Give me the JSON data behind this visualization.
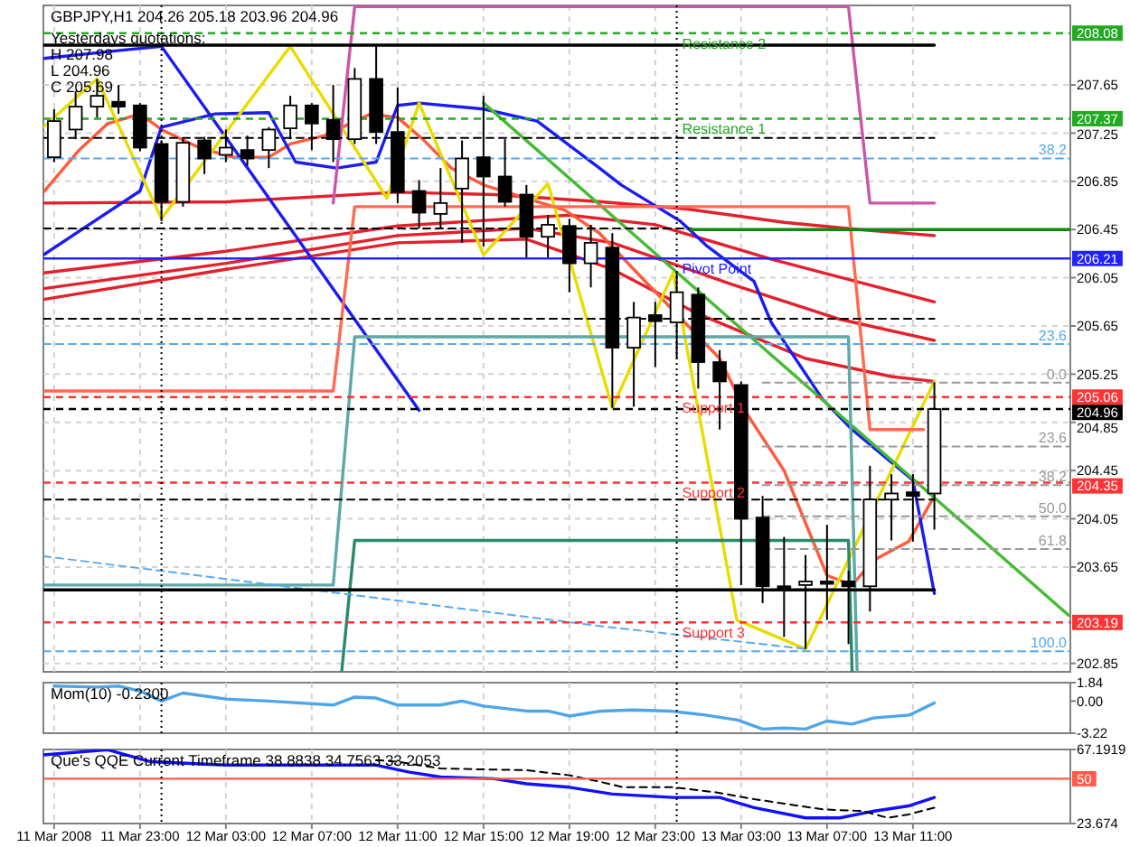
{
  "chart_data": [
    {
      "type": "candlestick",
      "title": "GBPJPY,H1 204.26 205.18 203.96 204.96",
      "color": "#000000",
      "x": [
        "2008-03-11T19:00",
        "2008-03-11T20:00",
        "2008-03-11T21:00",
        "2008-03-11T22:00",
        "2008-03-11T23:00",
        "2008-03-12T00:00",
        "2008-03-12T01:00",
        "2008-03-12T02:00",
        "2008-03-12T03:00",
        "2008-03-12T04:00",
        "2008-03-12T05:00",
        "2008-03-12T06:00",
        "2008-03-12T07:00",
        "2008-03-12T08:00",
        "2008-03-12T09:00",
        "2008-03-12T10:00",
        "2008-03-12T11:00",
        "2008-03-12T12:00",
        "2008-03-12T13:00",
        "2008-03-12T14:00",
        "2008-03-12T15:00",
        "2008-03-12T16:00",
        "2008-03-12T17:00",
        "2008-03-12T18:00",
        "2008-03-12T19:00",
        "2008-03-12T20:00",
        "2008-03-12T21:00",
        "2008-03-12T22:00",
        "2008-03-12T23:00",
        "2008-03-13T00:00",
        "2008-03-13T01:00",
        "2008-03-13T02:00",
        "2008-03-13T03:00",
        "2008-03-13T04:00",
        "2008-03-13T05:00",
        "2008-03-13T06:00",
        "2008-03-13T07:00",
        "2008-03-13T08:00",
        "2008-03-13T09:00",
        "2008-03-13T10:00",
        "2008-03-13T11:00",
        "2008-03-13T12:00"
      ],
      "ohlc": [
        [
          207.05,
          207.45,
          207.01,
          207.35
        ],
        [
          207.28,
          207.6,
          207.2,
          207.47
        ],
        [
          207.47,
          207.7,
          207.38,
          207.56
        ],
        [
          207.51,
          207.65,
          207.41,
          207.47
        ],
        [
          207.48,
          207.5,
          207.1,
          207.13
        ],
        [
          207.16,
          207.19,
          206.52,
          206.68
        ],
        [
          206.68,
          207.2,
          206.64,
          207.17
        ],
        [
          207.19,
          207.22,
          206.91,
          207.04
        ],
        [
          207.07,
          207.28,
          207.01,
          207.13
        ],
        [
          207.11,
          207.23,
          206.98,
          207.04
        ],
        [
          207.11,
          207.3,
          206.96,
          207.28
        ],
        [
          207.29,
          207.56,
          207.2,
          207.48
        ],
        [
          207.48,
          207.5,
          207.11,
          207.33
        ],
        [
          207.36,
          207.65,
          207.01,
          207.2
        ],
        [
          207.2,
          207.79,
          207.16,
          207.7
        ],
        [
          207.7,
          207.97,
          207.16,
          207.26
        ],
        [
          207.26,
          207.63,
          206.67,
          206.76
        ],
        [
          206.77,
          206.86,
          206.46,
          206.59
        ],
        [
          206.58,
          206.96,
          206.46,
          206.67
        ],
        [
          206.79,
          207.19,
          206.34,
          207.04
        ],
        [
          207.05,
          207.56,
          206.31,
          206.89
        ],
        [
          206.89,
          207.2,
          206.64,
          206.68
        ],
        [
          206.74,
          206.82,
          206.22,
          206.39
        ],
        [
          206.39,
          206.57,
          206.22,
          206.49
        ],
        [
          206.48,
          206.54,
          205.93,
          206.17
        ],
        [
          206.17,
          206.49,
          205.97,
          206.34
        ],
        [
          206.3,
          206.42,
          204.97,
          205.47
        ],
        [
          205.47,
          205.85,
          204.98,
          205.72
        ],
        [
          205.74,
          205.85,
          205.31,
          205.69
        ],
        [
          205.68,
          206.09,
          205.38,
          205.93
        ],
        [
          205.91,
          205.97,
          205.13,
          205.35
        ],
        [
          205.35,
          205.45,
          204.79,
          205.19
        ],
        [
          205.16,
          205.19,
          203.5,
          204.05
        ],
        [
          204.06,
          204.24,
          203.35,
          203.49
        ],
        [
          203.49,
          203.9,
          203.07,
          203.48
        ],
        [
          203.5,
          203.75,
          202.97,
          203.53
        ],
        [
          203.53,
          204.0,
          203.21,
          203.51
        ],
        [
          203.53,
          203.62,
          203.01,
          203.49
        ],
        [
          203.49,
          204.49,
          203.28,
          204.21
        ],
        [
          204.21,
          204.42,
          203.87,
          204.26
        ],
        [
          204.27,
          204.42,
          203.86,
          204.24
        ],
        [
          204.26,
          205.18,
          203.96,
          204.96
        ]
      ],
      "series": [
        {
          "type": "line",
          "color": "#e4202c",
          "x": [
            "2008-03-11T18:30",
            "2008-03-12T03:00",
            "2008-03-12T11:00",
            "2008-03-12T15:30",
            "2008-03-12T20:30",
            "2008-03-13T00:30",
            "2008-03-13T05:00",
            "2008-03-13T08:30",
            "2008-03-13T12:00"
          ],
          "values": [
            206.67,
            206.68,
            206.76,
            206.74,
            206.68,
            206.62,
            206.51,
            206.45,
            206.4
          ]
        },
        {
          "type": "line",
          "color": "#e4202c",
          "x": [
            "2008-03-11T18:30",
            "2008-03-12T03:00",
            "2008-03-12T11:00",
            "2008-03-12T19:00",
            "2008-03-12T23:00",
            "2008-03-13T04:30",
            "2008-03-13T12:00"
          ],
          "values": [
            206.09,
            206.27,
            206.48,
            206.57,
            206.49,
            206.2,
            205.85
          ]
        },
        {
          "type": "line",
          "color": "#e4202c",
          "x": [
            "2008-03-11T18:30",
            "2008-03-12T03:00",
            "2008-03-12T11:00",
            "2008-03-12T17:00",
            "2008-03-12T21:00",
            "2008-03-13T02:30",
            "2008-03-13T07:30",
            "2008-03-13T12:00"
          ],
          "values": [
            205.96,
            206.17,
            206.4,
            206.46,
            206.34,
            206.0,
            205.71,
            205.53
          ]
        },
        {
          "type": "line",
          "color": "#e4202c",
          "x": [
            "2008-03-11T18:30",
            "2008-03-12T03:00",
            "2008-03-12T11:00",
            "2008-03-12T17:00",
            "2008-03-12T21:00",
            "2008-03-13T01:00",
            "2008-03-13T06:00",
            "2008-03-13T10:00",
            "2008-03-13T12:00"
          ],
          "values": [
            205.87,
            206.12,
            206.34,
            206.37,
            206.12,
            205.75,
            205.38,
            205.23,
            205.19
          ]
        },
        {
          "type": "line",
          "color": "#ff5a3c",
          "x": [
            "2008-03-11T18:30",
            "2008-03-11T20:10",
            "2008-03-11T21:30",
            "2008-03-11T23:00",
            "2008-03-12T00:00",
            "2008-03-12T01:45",
            "2008-03-12T03:20",
            "2008-03-12T05:00",
            "2008-03-12T06:00",
            "2008-03-12T07:36",
            "2008-03-12T09:45",
            "2008-03-12T11:00",
            "2008-03-12T12:10",
            "2008-03-12T13:30",
            "2008-03-12T15:00",
            "2008-03-12T18:48",
            "2008-03-12T20:24",
            "2008-03-12T22:48",
            "2008-03-13T02:00",
            "2008-03-13T03:12",
            "2008-03-13T05:00",
            "2008-03-13T07:00",
            "2008-03-13T08:10",
            "2008-03-13T09:12",
            "2008-03-13T10:48",
            "2008-03-13T12:00"
          ],
          "values": [
            206.76,
            207.11,
            207.33,
            207.41,
            207.28,
            207.13,
            207.05,
            207.05,
            207.16,
            207.23,
            207.41,
            207.38,
            207.2,
            206.96,
            206.82,
            206.61,
            206.42,
            205.97,
            205.38,
            204.94,
            204.45,
            203.58,
            203.5,
            203.71,
            203.86,
            204.24
          ]
        },
        {
          "type": "line",
          "color": "#1c1cf0",
          "x": [
            "2008-03-11T18:30",
            "2008-03-11T23:00",
            "2008-03-12T00:00",
            "2008-03-12T02:30",
            "2008-03-12T05:00",
            "2008-03-12T06:15",
            "2008-03-12T08:10",
            "2008-03-12T10:00",
            "2008-03-12T11:00",
            "2008-03-12T12:00",
            "2008-03-12T15:00",
            "2008-03-12T17:30",
            "2008-03-12T20:24",
            "2008-03-12T21:25",
            "2008-03-13T00:10",
            "2008-03-13T01:26",
            "2008-03-13T03:36",
            "2008-03-13T04:24",
            "2008-03-13T06:48",
            "2008-03-13T08:10",
            "2008-03-13T11:00",
            "2008-03-13T12:00"
          ],
          "values": [
            206.24,
            206.77,
            207.3,
            207.41,
            207.42,
            207.01,
            206.96,
            207.01,
            207.48,
            207.5,
            207.45,
            207.35,
            206.96,
            206.82,
            206.52,
            206.31,
            206.02,
            205.68,
            205.04,
            204.79,
            204.37,
            203.43
          ]
        },
        {
          "type": "line",
          "color": "#1c1cf0",
          "x": [
            "2008-03-11T18:30",
            "2008-03-11T22:15",
            "2008-03-12T00:00",
            "2008-03-12T12:00"
          ],
          "values": [
            207.87,
            207.94,
            207.97,
            204.95
          ]
        },
        {
          "type": "line",
          "color": "#e8dc00",
          "x": [
            "2008-03-11T18:30",
            "2008-03-11T21:00",
            "2008-03-12T00:00",
            "2008-03-12T06:00",
            "2008-03-12T10:30",
            "2008-03-12T12:00",
            "2008-03-12T15:00",
            "2008-03-12T18:00",
            "2008-03-12T21:00",
            "2008-03-12T23:50",
            "2008-03-13T02:48",
            "2008-03-13T06:00",
            "2008-03-13T12:00"
          ],
          "values": [
            207.3,
            207.7,
            206.54,
            207.97,
            206.71,
            207.5,
            206.24,
            206.83,
            204.97,
            206.09,
            203.21,
            202.97,
            205.19
          ]
        },
        {
          "type": "line",
          "color": "#44bb33",
          "x": [
            "2008-03-12T15:00",
            "2008-03-13T18:15"
          ],
          "values": [
            207.5,
            203.25
          ]
        },
        {
          "type": "line",
          "color": "#cc55aa",
          "x": [
            "2008-03-12T08:00",
            "2008-03-12T09:00",
            "2008-03-13T08:00",
            "2008-03-13T09:00",
            "2008-03-13T12:00"
          ],
          "values": [
            206.67,
            208.3,
            208.3,
            206.67,
            206.67
          ]
        },
        {
          "type": "line",
          "color": "#ff6a50",
          "x": [
            "2008-03-11T18:30",
            "2008-03-12T08:00",
            "2008-03-12T09:00",
            "2008-03-13T08:00",
            "2008-03-13T09:00",
            "2008-03-13T11:30"
          ],
          "values": [
            205.11,
            205.11,
            206.64,
            206.64,
            204.79,
            204.79
          ]
        },
        {
          "type": "line",
          "color": "#5fa8a8",
          "x": [
            "2008-03-11T18:30",
            "2008-03-12T08:00",
            "2008-03-12T09:00",
            "2008-03-13T08:00",
            "2008-03-13T08:24"
          ],
          "values": [
            203.5,
            203.5,
            205.56,
            205.56,
            202.79
          ]
        },
        {
          "type": "line",
          "color": "#2a8a6a",
          "x": [
            "2008-03-12T08:24",
            "2008-03-12T09:00",
            "2008-03-13T08:00",
            "2008-03-13T08:10"
          ],
          "values": [
            202.79,
            203.87,
            203.87,
            202.79
          ]
        },
        {
          "type": "line",
          "color": "#55aaee",
          "line_style": "dashed",
          "x": [
            "2008-03-11T18:30",
            "2008-03-12T20:24",
            "2008-03-13T06:00"
          ],
          "values": [
            203.74,
            203.16,
            202.97
          ]
        },
        {
          "type": "line",
          "color": "#000000",
          "x": [
            "2008-03-11T18:30",
            "2008-03-13T12:00"
          ],
          "values": [
            207.98,
            207.98
          ]
        },
        {
          "type": "line",
          "color": "#000000",
          "x": [
            "2008-03-11T18:30",
            "2008-03-13T12:00"
          ],
          "values": [
            203.46,
            203.46
          ]
        },
        {
          "type": "line",
          "color": "#000000",
          "line_style": "dashed",
          "x": [
            "2008-03-11T18:30",
            "2008-03-13T12:00"
          ],
          "values": [
            207.21,
            207.21
          ]
        },
        {
          "type": "line",
          "color": "#000000",
          "line_style": "dashed",
          "x": [
            "2008-03-11T18:30",
            "2008-03-13T00:40"
          ],
          "values": [
            206.46,
            206.46
          ]
        },
        {
          "type": "line",
          "color": "#000000",
          "line_style": "dashed",
          "x": [
            "2008-03-11T18:30",
            "2008-03-13T12:00"
          ],
          "values": [
            205.71,
            205.71
          ]
        },
        {
          "type": "line",
          "color": "#000000",
          "line_style": "dashed",
          "x": [
            "2008-03-11T18:30",
            "2008-03-13T12:00"
          ],
          "values": [
            204.21,
            204.21
          ]
        },
        {
          "type": "line",
          "color": "#118811",
          "x": [
            "2008-03-13T00:40",
            "2008-03-13T18:20"
          ],
          "values": [
            206.45,
            206.45
          ]
        },
        {
          "type": "line",
          "color": "#55aaee",
          "line_style": "dashed",
          "x": [
            "2008-03-11T18:30",
            "2008-03-13T18:20"
          ],
          "values": [
            207.04,
            207.04
          ]
        },
        {
          "type": "line",
          "color": "#55aaee",
          "line_style": "dashed",
          "x": [
            "2008-03-11T18:30",
            "2008-03-13T18:20"
          ],
          "values": [
            205.5,
            205.5
          ]
        },
        {
          "type": "line",
          "color": "#55aaee",
          "line_style": "dashed",
          "x": [
            "2008-03-11T18:30",
            "2008-03-13T18:20"
          ],
          "values": [
            202.95,
            202.95
          ]
        },
        {
          "type": "line",
          "color": "#999999",
          "line_style": "dashed",
          "x": [
            "2008-03-13T04:00",
            "2008-03-13T18:20"
          ],
          "values": [
            205.18,
            205.18
          ]
        },
        {
          "type": "line",
          "color": "#999999",
          "line_style": "dashed",
          "x": [
            "2008-03-13T04:00",
            "2008-03-13T18:20"
          ],
          "values": [
            204.65,
            204.65
          ]
        },
        {
          "type": "line",
          "color": "#999999",
          "line_style": "dashed",
          "x": [
            "2008-03-13T04:00",
            "2008-03-13T18:20"
          ],
          "values": [
            204.33,
            204.33
          ]
        },
        {
          "type": "line",
          "color": "#999999",
          "line_style": "dashed",
          "x": [
            "2008-03-13T04:00",
            "2008-03-13T18:20"
          ],
          "values": [
            204.07,
            204.07
          ]
        },
        {
          "type": "line",
          "color": "#999999",
          "line_style": "dashed",
          "x": [
            "2008-03-13T04:00",
            "2008-03-13T18:20"
          ],
          "values": [
            203.8,
            203.8
          ]
        }
      ],
      "ref_lines": [
        {
          "axis": "y",
          "value": 208.08,
          "label": "208.08",
          "color": "#22aa22",
          "line_style": "dashed"
        },
        {
          "axis": "y",
          "value": 207.37,
          "label": "207.37",
          "color": "#22aa22",
          "line_style": "dashed"
        },
        {
          "axis": "y",
          "value": 206.21,
          "label": "206.21",
          "color": "#2222ff",
          "line_style": "solid"
        },
        {
          "axis": "y",
          "value": 205.06,
          "label": "205.06",
          "color": "#ff3333",
          "line_style": "dashed"
        },
        {
          "axis": "y",
          "value": 204.96,
          "label": "204.96",
          "color": "#000000",
          "line_style": "dashed"
        },
        {
          "axis": "y",
          "value": 204.35,
          "label": "204.35",
          "color": "#ff3333",
          "line_style": "dashed"
        },
        {
          "axis": "y",
          "value": 203.19,
          "label": "203.19",
          "color": "#ff3333",
          "line_style": "dashed"
        },
        {
          "axis": "x",
          "value": "2008-03-12T00:00",
          "color": "#000000",
          "line_style": "dotted"
        },
        {
          "axis": "x",
          "value": "2008-03-13T00:00",
          "color": "#000000",
          "line_style": "dotted"
        }
      ],
      "annotations": [
        "Yesterdays quotations:",
        "H 207.98",
        "L 204.96",
        "C 205.69",
        {
          "text": "Resistance 2",
          "x": "2008-03-13T00:00",
          "y": 208.08
        },
        {
          "text": "Resistance 1",
          "x": "2008-03-13T00:00",
          "y": 207.37
        },
        {
          "text": "Pivot Point",
          "x": "2008-03-13T00:00",
          "y": 206.21
        },
        {
          "text": "Support 1",
          "x": "2008-03-13T00:00",
          "y": 205.06
        },
        {
          "text": "Support 2",
          "x": "2008-03-13T00:00",
          "y": 204.35
        },
        {
          "text": "Support 3",
          "x": "2008-03-13T00:00",
          "y": 203.19
        },
        {
          "text": "38.2",
          "x": "2008-03-13T18:20",
          "y": 207.04
        },
        {
          "text": "23.6",
          "x": "2008-03-13T18:20",
          "y": 205.5
        },
        {
          "text": "0.0",
          "x": "2008-03-13T18:20",
          "y": 205.18
        },
        {
          "text": "23.6",
          "x": "2008-03-13T18:20",
          "y": 204.65
        },
        {
          "text": "38.2",
          "x": "2008-03-13T18:20",
          "y": 204.33
        },
        {
          "text": "50.0",
          "x": "2008-03-13T18:20",
          "y": 204.07
        },
        {
          "text": "61.8",
          "x": "2008-03-13T18:20",
          "y": 203.8
        },
        {
          "text": "100.0",
          "x": "2008-03-13T18:20",
          "y": 202.95
        }
      ],
      "xlim": [
        "2008-03-11T18:30",
        "2008-03-13T18:20"
      ],
      "ylim": [
        202.78,
        208.31
      ],
      "xticks": [
        {
          "value": "2008-03-11T19:00",
          "label": null
        },
        {
          "value": "2008-03-11T23:00",
          "label": null
        },
        {
          "value": "2008-03-12T03:00",
          "label": null
        },
        {
          "value": "2008-03-12T07:00",
          "label": null
        },
        {
          "value": "2008-03-12T11:00",
          "label": null
        },
        {
          "value": "2008-03-12T15:00",
          "label": null
        },
        {
          "value": "2008-03-12T19:00",
          "label": null
        },
        {
          "value": "2008-03-12T23:00",
          "label": null
        },
        {
          "value": "2008-03-13T03:00",
          "label": null
        },
        {
          "value": "2008-03-13T07:00",
          "label": null
        },
        {
          "value": "2008-03-13T11:00",
          "label": null
        }
      ],
      "yticks": [
        207.65,
        207.25,
        206.85,
        206.45,
        206.05,
        205.65,
        205.25,
        204.85,
        204.45,
        204.05,
        203.65,
        202.85
      ],
      "grid": true,
      "tick_labels": "y"
    },
    {
      "type": "line",
      "title": "Mom(10) -0.2300",
      "series": [
        {
          "type": "line",
          "color": "#4da6e8",
          "x": [
            "2008-03-11T19:00",
            "2008-03-11T21:00",
            "2008-03-11T22:00",
            "2008-03-11T23:00",
            "2008-03-12T00:00",
            "2008-03-12T01:00",
            "2008-03-12T03:00",
            "2008-03-12T05:00",
            "2008-03-12T08:00",
            "2008-03-12T09:00",
            "2008-03-12T10:00",
            "2008-03-12T11:00",
            "2008-03-12T13:00",
            "2008-03-12T14:00",
            "2008-03-12T15:00",
            "2008-03-12T17:00",
            "2008-03-12T18:00",
            "2008-03-12T19:00",
            "2008-03-12T20:30",
            "2008-03-12T22:00",
            "2008-03-12T23:40",
            "2008-03-13T01:20",
            "2008-03-13T02:50",
            "2008-03-13T04:00",
            "2008-03-13T05:00",
            "2008-03-13T06:00",
            "2008-03-13T07:00",
            "2008-03-13T08:10",
            "2008-03-13T09:10",
            "2008-03-13T10:50",
            "2008-03-13T12:00"
          ],
          "values": [
            1.5,
            1.4,
            1.5,
            1.0,
            0.0,
            0.8,
            0.2,
            0.0,
            -0.4,
            0.4,
            0.3,
            -0.4,
            -0.4,
            0.0,
            -0.5,
            -1.0,
            -1.0,
            -1.5,
            -1.0,
            -0.9,
            -1.0,
            -1.4,
            -1.9,
            -2.8,
            -2.7,
            -2.8,
            -2.0,
            -2.3,
            -1.7,
            -1.4,
            -0.2
          ]
        }
      ],
      "ref_lines": [
        {
          "axis": "x",
          "value": "2008-03-12T00:00",
          "color": "#000000",
          "line_style": "dotted"
        },
        {
          "axis": "x",
          "value": "2008-03-13T00:00",
          "color": "#000000",
          "line_style": "dotted"
        }
      ],
      "xlim": [
        "2008-03-11T18:30",
        "2008-03-13T18:20"
      ],
      "ylim": [
        -3.22,
        1.84
      ],
      "xticks": [
        {
          "value": "2008-03-11T19:00",
          "label": null
        },
        {
          "value": "2008-03-11T23:00",
          "label": null
        },
        {
          "value": "2008-03-12T03:00",
          "label": null
        },
        {
          "value": "2008-03-12T07:00",
          "label": null
        },
        {
          "value": "2008-03-12T11:00",
          "label": null
        },
        {
          "value": "2008-03-12T15:00",
          "label": null
        },
        {
          "value": "2008-03-12T19:00",
          "label": null
        },
        {
          "value": "2008-03-12T23:00",
          "label": null
        },
        {
          "value": "2008-03-13T03:00",
          "label": null
        },
        {
          "value": "2008-03-13T07:00",
          "label": null
        },
        {
          "value": "2008-03-13T11:00",
          "label": null
        }
      ],
      "yticks": [
        1.84,
        {
          "value": 0,
          "label": "0.00"
        },
        -3.22
      ],
      "grid": "x",
      "tick_labels": "y"
    },
    {
      "type": "line",
      "title": "Que's QQE Current Timeframe 38.8838 34.7563 33.2053",
      "series": [
        {
          "type": "line",
          "color": "#1010ff",
          "x": [
            "2008-03-11T18:30",
            "2008-03-11T21:30",
            "2008-03-11T23:30",
            "2008-03-12T03:00",
            "2008-03-12T10:00",
            "2008-03-12T11:30",
            "2008-03-12T13:00",
            "2008-03-12T15:30",
            "2008-03-12T17:00",
            "2008-03-12T19:00",
            "2008-03-12T21:00",
            "2008-03-12T23:50",
            "2008-03-13T02:00",
            "2008-03-13T03:36",
            "2008-03-13T06:00",
            "2008-03-13T07:36",
            "2008-03-13T09:12",
            "2008-03-13T10:48",
            "2008-03-13T12:00"
          ],
          "values": [
            64,
            67,
            60,
            58,
            58,
            54,
            51,
            50,
            47,
            45,
            41,
            39,
            39,
            33,
            27,
            27,
            31,
            34,
            39
          ]
        },
        {
          "type": "line",
          "color": "#000000",
          "line_style": "dashed",
          "x": [
            "2008-03-12T10:00",
            "2008-03-12T11:00",
            "2008-03-12T13:00",
            "2008-03-12T17:00",
            "2008-03-12T19:00",
            "2008-03-12T20:30",
            "2008-03-12T21:30",
            "2008-03-12T23:50",
            "2008-03-13T01:50",
            "2008-03-13T03:36",
            "2008-03-13T06:48",
            "2008-03-13T08:40",
            "2008-03-13T09:50",
            "2008-03-13T10:48",
            "2008-03-13T12:00"
          ],
          "values": [
            61,
            60,
            56,
            55,
            52,
            48,
            45,
            45,
            42,
            38,
            32,
            31,
            27,
            29,
            33
          ]
        }
      ],
      "ref_lines": [
        {
          "axis": "y",
          "value": 50,
          "label": "50",
          "color": "#ff5a4a",
          "line_style": "solid"
        },
        {
          "axis": "x",
          "value": "2008-03-12T00:00",
          "color": "#000000",
          "line_style": "dotted"
        },
        {
          "axis": "x",
          "value": "2008-03-13T00:00",
          "color": "#000000",
          "line_style": "dotted"
        }
      ],
      "xlim": [
        "2008-03-11T18:30",
        "2008-03-13T18:20"
      ],
      "ylim": [
        23.674,
        67.1919
      ],
      "xticks": [
        {
          "value": "2008-03-11T19:00",
          "label": "11 Mar 2008"
        },
        {
          "value": "2008-03-11T23:00",
          "label": "11 Mar 23:00"
        },
        {
          "value": "2008-03-12T03:00",
          "label": "12 Mar 03:00"
        },
        {
          "value": "2008-03-12T07:00",
          "label": "12 Mar 07:00"
        },
        {
          "value": "2008-03-12T11:00",
          "label": "12 Mar 11:00"
        },
        {
          "value": "2008-03-12T15:00",
          "label": "12 Mar 15:00"
        },
        {
          "value": "2008-03-12T19:00",
          "label": "12 Mar 19:00"
        },
        {
          "value": "2008-03-12T23:00",
          "label": "12 Mar 23:00"
        },
        {
          "value": "2008-03-13T03:00",
          "label": "13 Mar 03:00"
        },
        {
          "value": "2008-03-13T07:00",
          "label": "13 Mar 07:00"
        },
        {
          "value": "2008-03-13T11:00",
          "label": "13 Mar 11:00"
        }
      ],
      "yticks": [
        67.1919,
        23.674
      ],
      "grid": "x"
    }
  ]
}
